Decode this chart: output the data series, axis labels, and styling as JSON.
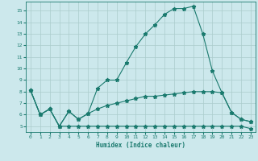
{
  "xlabel": "Humidex (Indice chaleur)",
  "bg_color": "#cce8ec",
  "grid_color": "#aacccc",
  "line_color": "#1a7a6e",
  "xlim": [
    -0.5,
    23.5
  ],
  "ylim": [
    4.5,
    15.8
  ],
  "yticks": [
    5,
    6,
    7,
    8,
    9,
    10,
    11,
    12,
    13,
    14,
    15
  ],
  "xticks": [
    0,
    1,
    2,
    3,
    4,
    5,
    6,
    7,
    8,
    9,
    10,
    11,
    12,
    13,
    14,
    15,
    16,
    17,
    18,
    19,
    20,
    21,
    22,
    23
  ],
  "line1_x": [
    0,
    1,
    2,
    3,
    4,
    5,
    6,
    7,
    8,
    9,
    10,
    11,
    12,
    13,
    14,
    15,
    16,
    17,
    18,
    19,
    20,
    21,
    22,
    23
  ],
  "line1_y": [
    8.1,
    6.0,
    6.5,
    5.0,
    6.3,
    5.6,
    6.1,
    8.3,
    9.0,
    9.0,
    10.5,
    11.9,
    13.0,
    13.8,
    14.7,
    15.2,
    15.2,
    15.4,
    13.0,
    9.8,
    7.9,
    6.2,
    5.6,
    5.4
  ],
  "line2_x": [
    0,
    1,
    2,
    3,
    4,
    5,
    6,
    7,
    8,
    9,
    10,
    11,
    12,
    13,
    14,
    15,
    16,
    17,
    18,
    19,
    20,
    21,
    22,
    23
  ],
  "line2_y": [
    8.1,
    6.0,
    6.5,
    5.0,
    5.0,
    5.0,
    5.0,
    5.0,
    5.0,
    5.0,
    5.0,
    5.0,
    5.0,
    5.0,
    5.0,
    5.0,
    5.0,
    5.0,
    5.0,
    5.0,
    5.0,
    5.0,
    5.0,
    4.8
  ],
  "line3_x": [
    0,
    1,
    2,
    3,
    4,
    5,
    6,
    7,
    8,
    9,
    10,
    11,
    12,
    13,
    14,
    15,
    16,
    17,
    18,
    19,
    20,
    21,
    22,
    23
  ],
  "line3_y": [
    8.1,
    6.0,
    6.5,
    5.0,
    6.3,
    5.6,
    6.1,
    6.5,
    6.8,
    7.0,
    7.2,
    7.4,
    7.6,
    7.6,
    7.7,
    7.8,
    7.9,
    8.0,
    8.0,
    8.0,
    7.9,
    6.2,
    5.6,
    5.4
  ]
}
